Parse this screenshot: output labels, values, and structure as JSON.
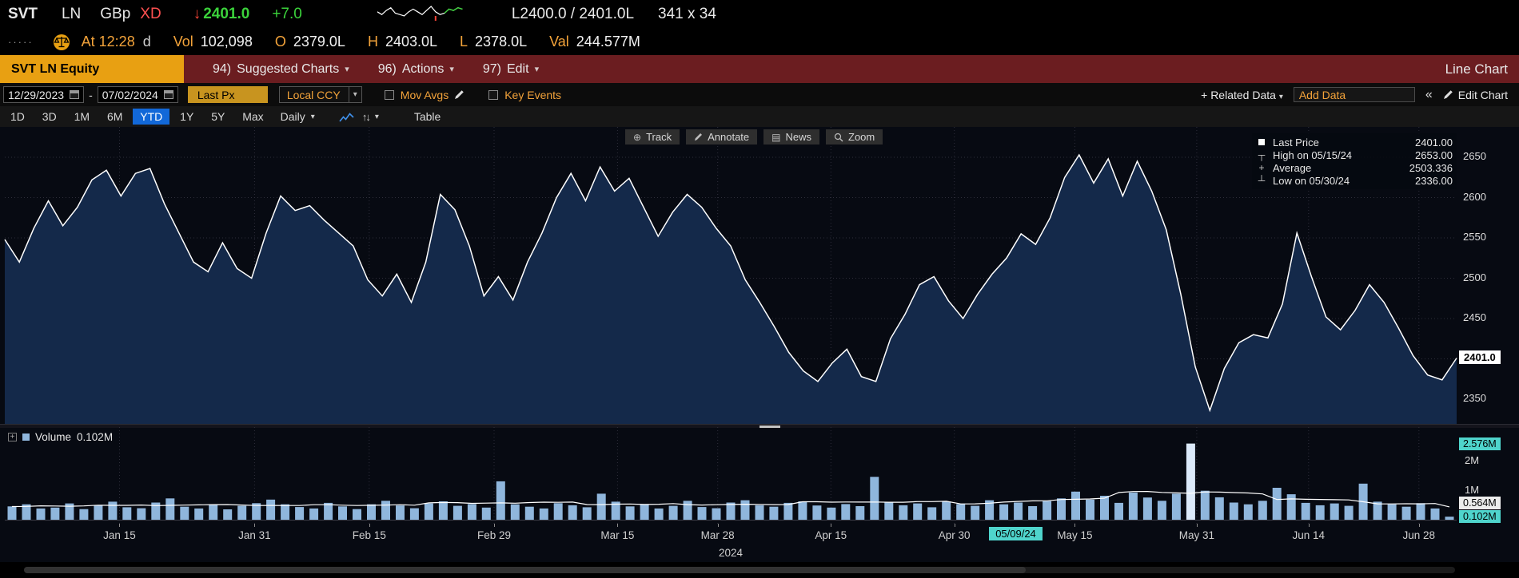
{
  "quote": {
    "ticker": "SVT",
    "exchange": "LN",
    "currency": "GBp",
    "flag": "XD",
    "direction": "down",
    "last": "2401.0",
    "change": "+7.0",
    "bid_ask": "L2400.0 / 2401.0L",
    "lot": "341 x 34",
    "time_label": "At 12:28",
    "session": "d",
    "vol_label": "Vol",
    "volume": "102,098",
    "open_label": "O",
    "open": "2379.0L",
    "high_label": "H",
    "high": "2403.0L",
    "low_label": "L",
    "low": "2378.0L",
    "val_label": "Val",
    "value_traded": "244.577M"
  },
  "menu": {
    "security": "SVT LN Equity",
    "items": [
      {
        "num": "94)",
        "label": "Suggested Charts"
      },
      {
        "num": "96)",
        "label": "Actions"
      },
      {
        "num": "97)",
        "label": "Edit"
      }
    ],
    "right": "Line Chart"
  },
  "settings": {
    "date_from": "12/29/2023",
    "date_sep": "-",
    "date_to": "07/02/2024",
    "price_field": "Last Px",
    "currency_field": "Local CCY",
    "mov_avgs": "Mov Avgs",
    "mov_avgs_checked": false,
    "key_events": "Key Events",
    "key_events_checked": false,
    "related_data": "+ Related Data",
    "add_data": "Add Data",
    "edit_chart": "Edit Chart"
  },
  "toolbar": {
    "periods": [
      "1D",
      "3D",
      "1M",
      "6M",
      "YTD",
      "1Y",
      "5Y",
      "Max"
    ],
    "selected": "YTD",
    "frequency": "Daily",
    "table": "Table",
    "overlay": [
      {
        "icon": "track-icon",
        "label": "Track"
      },
      {
        "icon": "annotate-icon",
        "label": "Annotate"
      },
      {
        "icon": "news-icon",
        "label": "News"
      },
      {
        "icon": "zoom-icon",
        "label": "Zoom"
      }
    ]
  },
  "legend": {
    "rows": [
      {
        "marker": "square",
        "label": "Last Price",
        "value": "2401.00"
      },
      {
        "marker": "high",
        "label": "High on 05/15/24",
        "value": "2653.00"
      },
      {
        "marker": "average",
        "label": "Average",
        "value": "2503.336"
      },
      {
        "marker": "low",
        "label": "Low on 05/30/24",
        "value": "2336.00"
      }
    ]
  },
  "volume_pane": {
    "legend_label": "Volume",
    "legend_value": "0.102M"
  },
  "chart_data": {
    "type": "area",
    "title": "SVT LN Equity Last Px with Volume",
    "x_range": [
      "12/29/2023",
      "07/02/2024"
    ],
    "y_ticks": [
      2350,
      2400,
      2450,
      2500,
      2550,
      2600,
      2650
    ],
    "y_domain": [
      2320,
      2688
    ],
    "last_price": 2401.0,
    "price_chip": "2401.0",
    "high": {
      "date": "05/15/24",
      "value": 2653.0
    },
    "low": {
      "date": "05/30/24",
      "value": 2336.0
    },
    "average": 2503.336,
    "year": "2024",
    "cursor_date": {
      "label": "05/09/24",
      "pos": 0.7
    },
    "x_ticks": [
      {
        "label": "Jan 15",
        "pos": 0.079
      },
      {
        "label": "Jan 31",
        "pos": 0.172
      },
      {
        "label": "Feb 15",
        "pos": 0.251
      },
      {
        "label": "Feb 29",
        "pos": 0.337
      },
      {
        "label": "Mar 15",
        "pos": 0.422
      },
      {
        "label": "Mar 28",
        "pos": 0.491
      },
      {
        "label": "Apr 15",
        "pos": 0.569
      },
      {
        "label": "Apr 30",
        "pos": 0.654
      },
      {
        "label": "May 15",
        "pos": 0.737
      },
      {
        "label": "May 31",
        "pos": 0.821
      },
      {
        "label": "Jun 14",
        "pos": 0.898
      },
      {
        "label": "Jun 28",
        "pos": 0.974
      }
    ],
    "prices": [
      2548,
      2520,
      2562,
      2596,
      2565,
      2588,
      2622,
      2634,
      2602,
      2630,
      2636,
      2592,
      2556,
      2520,
      2508,
      2544,
      2512,
      2500,
      2556,
      2602,
      2584,
      2590,
      2572,
      2556,
      2540,
      2498,
      2478,
      2505,
      2470,
      2520,
      2604,
      2585,
      2540,
      2478,
      2502,
      2473,
      2520,
      2556,
      2600,
      2630,
      2596,
      2638,
      2608,
      2624,
      2588,
      2552,
      2582,
      2604,
      2588,
      2562,
      2540,
      2498,
      2470,
      2440,
      2408,
      2385,
      2372,
      2395,
      2412,
      2378,
      2372,
      2425,
      2455,
      2492,
      2502,
      2472,
      2450,
      2480,
      2505,
      2525,
      2555,
      2542,
      2575,
      2625,
      2653,
      2618,
      2648,
      2602,
      2645,
      2608,
      2560,
      2480,
      2390,
      2336,
      2388,
      2420,
      2430,
      2426,
      2468,
      2556,
      2502,
      2452,
      2436,
      2460,
      2492,
      2470,
      2438,
      2404,
      2380,
      2374,
      2401
    ],
    "volumes": [
      0.45,
      0.52,
      0.38,
      0.41,
      0.55,
      0.36,
      0.48,
      0.61,
      0.42,
      0.39,
      0.58,
      0.72,
      0.44,
      0.38,
      0.52,
      0.35,
      0.47,
      0.56,
      0.68,
      0.52,
      0.43,
      0.38,
      0.57,
      0.45,
      0.36,
      0.52,
      0.64,
      0.48,
      0.39,
      0.55,
      0.62,
      0.47,
      0.53,
      0.41,
      1.3,
      0.52,
      0.44,
      0.38,
      0.56,
      0.49,
      0.42,
      0.88,
      0.61,
      0.45,
      0.52,
      0.38,
      0.47,
      0.64,
      0.43,
      0.39,
      0.58,
      0.66,
      0.49,
      0.44,
      0.57,
      0.62,
      0.48,
      0.41,
      0.53,
      0.46,
      1.45,
      0.58,
      0.49,
      0.55,
      0.42,
      0.61,
      0.53,
      0.47,
      0.66,
      0.52,
      0.58,
      0.46,
      0.63,
      0.72,
      0.95,
      0.68,
      0.81,
      0.57,
      0.92,
      0.75,
      0.64,
      0.88,
      2.576,
      0.98,
      0.76,
      0.58,
      0.52,
      0.64,
      1.08,
      0.86,
      0.57,
      0.49,
      0.55,
      0.47,
      1.22,
      0.61,
      0.52,
      0.44,
      0.56,
      0.38,
      0.102
    ],
    "volume_max": 2.7,
    "volume_axis": [
      {
        "label": "2.576M",
        "value": 2.576,
        "style": "teal"
      },
      {
        "label": "2M",
        "value": 2.0,
        "style": "plain"
      },
      {
        "label": "1M",
        "value": 1.0,
        "style": "plain"
      },
      {
        "label": "0.564M",
        "value": 0.564,
        "style": "white"
      },
      {
        "label": "0.102M",
        "value": 0.102,
        "style": "teal"
      }
    ],
    "sparkline": [
      6,
      4,
      7,
      9,
      5,
      4,
      3,
      6,
      8,
      6,
      4,
      7,
      10,
      6,
      4,
      5,
      8,
      7,
      9,
      8
    ]
  },
  "colors": {
    "amber": "#f3a33a",
    "amber_box": "#e8a012",
    "green": "#3bd23b",
    "red": "#f64538",
    "teal": "#4fd4cc",
    "selected_blue": "#1268d8",
    "bar": "#8fb6dc",
    "bar_highlight": "#dceafa",
    "area_fill": "#14294a",
    "line": "#ffffff",
    "menu_red": "#6b1d20",
    "chart_bg": "#070a12"
  }
}
